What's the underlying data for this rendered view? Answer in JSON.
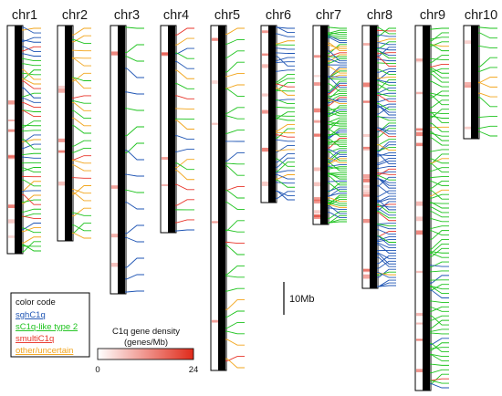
{
  "chromosomes": [
    {
      "label": "chr1",
      "lines": {
        "sgh": 12,
        "scl": 22,
        "multi": 7,
        "other": 8
      }
    },
    {
      "label": "chr2",
      "lines": {
        "sgh": 0,
        "scl": 10,
        "multi": 3,
        "other": 16
      }
    },
    {
      "label": "chr3",
      "lines": {
        "sgh": 10,
        "scl": 7,
        "multi": 0,
        "other": 0
      }
    },
    {
      "label": "chr4",
      "lines": {
        "sgh": 5,
        "scl": 5,
        "multi": 5,
        "other": 6
      }
    },
    {
      "label": "chr5",
      "lines": {
        "sgh": 2,
        "scl": 20,
        "multi": 3,
        "other": 6
      }
    },
    {
      "label": "chr6",
      "lines": {
        "sgh": 20,
        "scl": 14,
        "multi": 2,
        "other": 6
      }
    },
    {
      "label": "chr7",
      "lines": {
        "sgh": 25,
        "scl": 55,
        "multi": 4,
        "other": 12
      }
    },
    {
      "label": "chr8",
      "lines": {
        "sgh": 60,
        "scl": 22,
        "multi": 10,
        "other": 4
      }
    },
    {
      "label": "chr9",
      "lines": {
        "sgh": 5,
        "scl": 70,
        "multi": 2,
        "other": 4
      }
    },
    {
      "label": "chr10",
      "lines": {
        "sgh": 0,
        "scl": 9,
        "multi": 0,
        "other": 3
      }
    }
  ],
  "legend": {
    "title": "color code",
    "items": [
      {
        "label": "sghC1q",
        "color": "#1f55b4"
      },
      {
        "label": "sC1q-like type 2",
        "color": "#1ec31e"
      },
      {
        "label": "smultiC1q",
        "color": "#e8352a"
      },
      {
        "label": "other/uncertain",
        "color": "#f2a51c"
      }
    ]
  },
  "scale_bar": {
    "label": "10Mb"
  },
  "density": {
    "title_line1": "C1q gene density",
    "title_line2": "(genes/Mb)",
    "min": "0",
    "max": "24",
    "color_low": "#ffffff",
    "color_high": "#e02a1a"
  }
}
